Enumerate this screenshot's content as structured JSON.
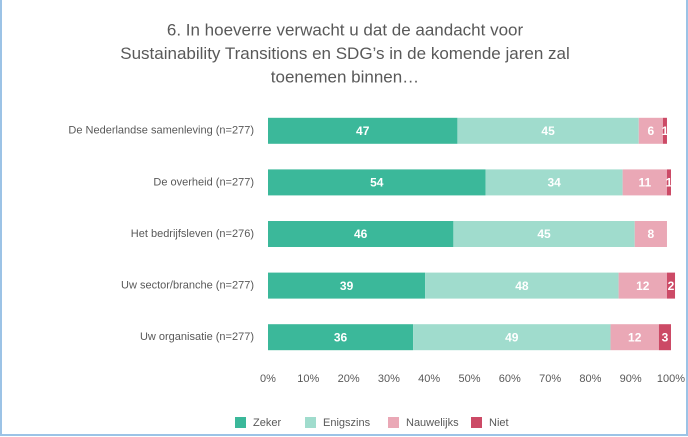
{
  "chart_data": {
    "type": "stacked-bar-horizontal",
    "title": [
      "6. In hoeverre verwacht u dat de aandacht voor",
      "Sustainability Transitions en SDG’s in de komende jaren zal",
      "toenemen binnen…"
    ],
    "categories": [
      "De Nederlandse samenleving (n=277)",
      "De overheid (n=277)",
      "Het bedrijfsleven (n=276)",
      "Uw sector/branche (n=277)",
      "Uw organisatie (n=277)"
    ],
    "series": [
      {
        "name": "Zeker",
        "color": "#3bb89a",
        "values": [
          47,
          54,
          46,
          39,
          36
        ]
      },
      {
        "name": "Enigszins",
        "color": "#a0dccd",
        "values": [
          45,
          34,
          45,
          48,
          49
        ]
      },
      {
        "name": "Nauwelijks",
        "color": "#eaa8b6",
        "values": [
          6,
          11,
          8,
          12,
          12
        ]
      },
      {
        "name": "Niet",
        "color": "#cc4a66",
        "values": [
          1,
          1,
          0,
          2,
          3
        ]
      }
    ],
    "xlim": [
      0,
      100
    ],
    "xticks": [
      {
        "value": 0,
        "label": "0%"
      },
      {
        "value": 10,
        "label": "10%"
      },
      {
        "value": 20,
        "label": "20%"
      },
      {
        "value": 30,
        "label": "30%"
      },
      {
        "value": 40,
        "label": "40%"
      },
      {
        "value": 50,
        "label": "50%"
      },
      {
        "value": 60,
        "label": "60%"
      },
      {
        "value": 70,
        "label": "70%"
      },
      {
        "value": 80,
        "label": "80%"
      },
      {
        "value": 90,
        "label": "90%"
      },
      {
        "value": 100,
        "label": "100%"
      }
    ],
    "legend": "bottom"
  }
}
